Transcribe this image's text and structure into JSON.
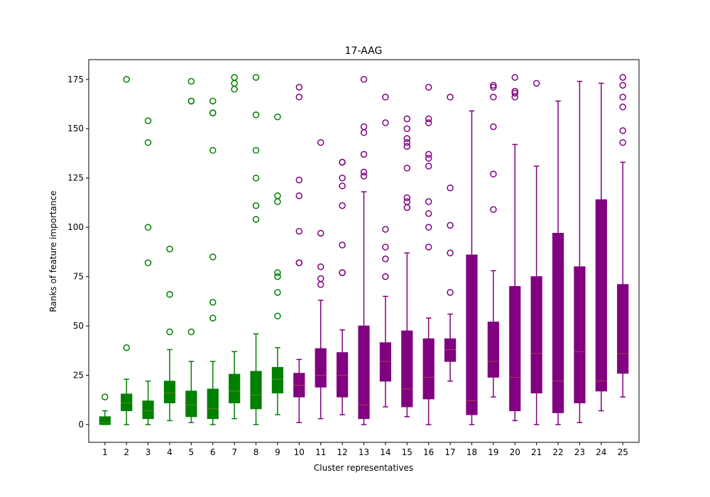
{
  "chart_data": {
    "type": "box",
    "title": "17-AAG",
    "xlabel": "Cluster representatives",
    "ylabel": "Ranks of feature importance",
    "ylim": [
      -9,
      185
    ],
    "yticks": [
      0,
      25,
      50,
      75,
      100,
      125,
      150,
      175
    ],
    "grid": false,
    "categories": [
      "1",
      "2",
      "3",
      "4",
      "5",
      "6",
      "7",
      "8",
      "9",
      "10",
      "11",
      "12",
      "13",
      "14",
      "15",
      "16",
      "17",
      "18",
      "19",
      "20",
      "21",
      "22",
      "23",
      "24",
      "25"
    ],
    "colors": {
      "green": "#008000",
      "purple": "#800080"
    },
    "boxes": [
      {
        "label": "1",
        "color": "green",
        "q1": 0,
        "median": 1,
        "q3": 4,
        "whislo": 0,
        "whishi": 7,
        "fliers": [
          14
        ]
      },
      {
        "label": "2",
        "color": "green",
        "q1": 7,
        "median": 11,
        "q3": 15.5,
        "whislo": 0,
        "whishi": 23,
        "fliers": [
          39,
          175
        ]
      },
      {
        "label": "3",
        "color": "green",
        "q1": 3,
        "median": 7,
        "q3": 12,
        "whislo": 0,
        "whishi": 22,
        "fliers": [
          82,
          100,
          143,
          154
        ]
      },
      {
        "label": "4",
        "color": "green",
        "q1": 11,
        "median": 16,
        "q3": 22,
        "whislo": 2,
        "whishi": 38,
        "fliers": [
          47,
          66,
          89
        ]
      },
      {
        "label": "5",
        "color": "green",
        "q1": 4,
        "median": 10,
        "q3": 17,
        "whislo": 1,
        "whishi": 32,
        "fliers": [
          47,
          164,
          164,
          174
        ]
      },
      {
        "label": "6",
        "color": "green",
        "q1": 3,
        "median": 8,
        "q3": 18,
        "whislo": 0,
        "whishi": 32,
        "fliers": [
          54,
          62,
          85,
          139,
          158,
          158,
          164
        ]
      },
      {
        "label": "7",
        "color": "green",
        "q1": 11,
        "median": 17,
        "q3": 25.5,
        "whislo": 3,
        "whishi": 37,
        "fliers": [
          170,
          173,
          176
        ]
      },
      {
        "label": "8",
        "color": "green",
        "q1": 8,
        "median": 15,
        "q3": 27,
        "whislo": 0,
        "whishi": 46,
        "fliers": [
          104,
          111,
          125,
          139,
          157,
          176
        ]
      },
      {
        "label": "9",
        "color": "green",
        "q1": 16,
        "median": 23,
        "q3": 29,
        "whislo": 5,
        "whishi": 39,
        "fliers": [
          55,
          67,
          75,
          77,
          113,
          116,
          156
        ]
      },
      {
        "label": "10",
        "color": "purple",
        "q1": 14,
        "median": 20,
        "q3": 26,
        "whislo": 1,
        "whishi": 33,
        "fliers": [
          82,
          82,
          98,
          116,
          124,
          166,
          171
        ]
      },
      {
        "label": "11",
        "color": "purple",
        "q1": 19,
        "median": 25,
        "q3": 38.5,
        "whislo": 3,
        "whishi": 63,
        "fliers": [
          71,
          74,
          80,
          97,
          143
        ]
      },
      {
        "label": "12",
        "color": "purple",
        "q1": 14,
        "median": 25,
        "q3": 36.5,
        "whislo": 5,
        "whishi": 48,
        "fliers": [
          77,
          77,
          91,
          111,
          121,
          125,
          133,
          133
        ]
      },
      {
        "label": "13",
        "color": "purple",
        "q1": 3,
        "median": 10,
        "q3": 50,
        "whislo": 0,
        "whishi": 118,
        "fliers": [
          126,
          128,
          137,
          148,
          151,
          175
        ]
      },
      {
        "label": "14",
        "color": "purple",
        "q1": 22,
        "median": 32,
        "q3": 41.5,
        "whislo": 9,
        "whishi": 65,
        "fliers": [
          75,
          84,
          90,
          99,
          153,
          166
        ]
      },
      {
        "label": "15",
        "color": "purple",
        "q1": 9,
        "median": 18,
        "q3": 47.5,
        "whislo": 4,
        "whishi": 87,
        "fliers": [
          110,
          113,
          115,
          130,
          141,
          143,
          145,
          150,
          155
        ]
      },
      {
        "label": "16",
        "color": "purple",
        "q1": 13,
        "median": 24,
        "q3": 43.5,
        "whislo": 0,
        "whishi": 54,
        "fliers": [
          90,
          100,
          107,
          113,
          131,
          135,
          137,
          153,
          155,
          171
        ]
      },
      {
        "label": "17",
        "color": "purple",
        "q1": 32,
        "median": 38,
        "q3": 43.5,
        "whislo": 22,
        "whishi": 56,
        "fliers": [
          67,
          87,
          101,
          120,
          166
        ]
      },
      {
        "label": "18",
        "color": "purple",
        "q1": 5,
        "median": 12,
        "q3": 86,
        "whislo": 0,
        "whishi": 159,
        "fliers": []
      },
      {
        "label": "19",
        "color": "purple",
        "q1": 24,
        "median": 32,
        "q3": 52,
        "whislo": 14,
        "whishi": 78,
        "fliers": [
          109,
          127,
          151,
          166,
          171,
          172
        ]
      },
      {
        "label": "20",
        "color": "purple",
        "q1": 7,
        "median": 24,
        "q3": 70,
        "whislo": 2,
        "whishi": 142,
        "fliers": [
          166,
          168,
          169,
          176
        ]
      },
      {
        "label": "21",
        "color": "purple",
        "q1": 16,
        "median": 36,
        "q3": 75,
        "whislo": 0,
        "whishi": 131,
        "fliers": [
          173
        ]
      },
      {
        "label": "22",
        "color": "purple",
        "q1": 6,
        "median": 22,
        "q3": 97,
        "whislo": 0,
        "whishi": 164,
        "fliers": []
      },
      {
        "label": "23",
        "color": "purple",
        "q1": 11,
        "median": 37,
        "q3": 80,
        "whislo": 1,
        "whishi": 174,
        "fliers": []
      },
      {
        "label": "24",
        "color": "purple",
        "q1": 17,
        "median": 22,
        "q3": 114,
        "whislo": 7,
        "whishi": 173,
        "fliers": []
      },
      {
        "label": "25",
        "color": "purple",
        "q1": 26,
        "median": 36,
        "q3": 71,
        "whislo": 14,
        "whishi": 133,
        "fliers": [
          143,
          149,
          161,
          166,
          172,
          176
        ]
      }
    ]
  }
}
